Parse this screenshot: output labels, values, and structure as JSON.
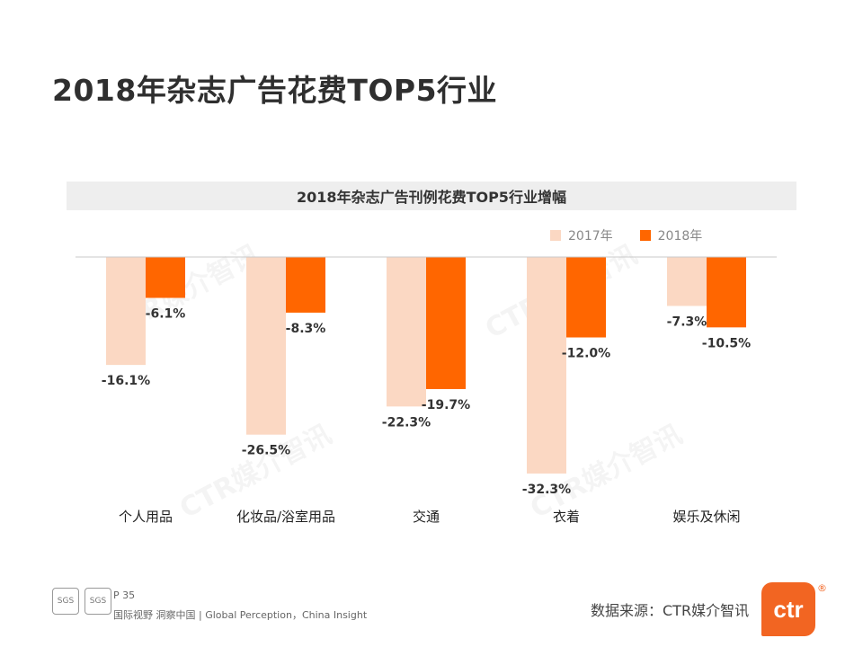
{
  "page": {
    "title": "2018年杂志广告花费TOP5行业",
    "page_number": "P 35",
    "slogan": "国际视野  洞察中国 |  Global Perception，China Insight",
    "source": "数据来源：CTR媒介智讯",
    "logo_text": "ctr",
    "logo_mark": "®",
    "watermark": "CTR媒介智讯",
    "badges": [
      "SGS",
      "SGS"
    ]
  },
  "colors": {
    "series_2017": "#fbd8c3",
    "series_2018": "#ff6600"
  },
  "chart_data": {
    "type": "bar",
    "title": "2018年杂志广告刊例花费TOP5行业增幅",
    "categories": [
      "个人用品",
      "化妆品/浴室用品",
      "交通",
      "衣着",
      "娱乐及休闲"
    ],
    "series": [
      {
        "name": "2017年",
        "values": [
          -16.1,
          -26.5,
          -22.3,
          -32.3,
          -7.3
        ]
      },
      {
        "name": "2018年",
        "values": [
          -6.1,
          -8.3,
          -19.7,
          -12.0,
          -10.5
        ]
      }
    ],
    "value_labels": [
      [
        "-16.1%",
        "-26.5%",
        "-22.3%",
        "-32.3%",
        "-7.3%"
      ],
      [
        "-6.1%",
        "-8.3%",
        "-19.7%",
        "-12.0%",
        "-10.5%"
      ]
    ],
    "ylim": [
      -35,
      0
    ],
    "xlabel": "",
    "ylabel": "",
    "legend": "top-right",
    "grid": false
  }
}
